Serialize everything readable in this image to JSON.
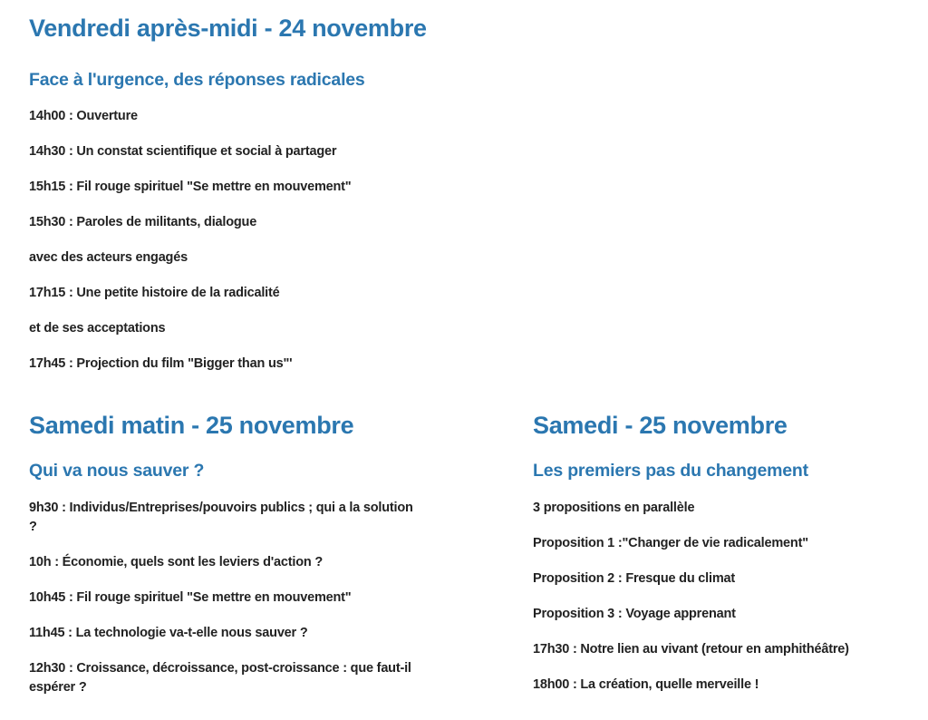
{
  "colors": {
    "heading": "#2b77b0",
    "text": "#222222"
  },
  "sections": [
    {
      "title": "Vendredi après-midi - 24 novembre",
      "subtitle": "Face à l'urgence, des réponses radicales",
      "items": [
        "14h00 : Ouverture",
        "14h30 : Un constat scientifique et social à partager",
        "15h15 : Fil rouge spirituel \"Se mettre en mouvement\"",
        "15h30 : Paroles de militants, dialogue",
        "avec des acteurs engagés",
        "17h15 : Une petite histoire de la radicalité",
        "et de ses acceptations",
        "17h45 : Projection du film \"Bigger than us\"'"
      ]
    },
    {
      "title": "Samedi matin - 25 novembre",
      "subtitle": "Qui va nous sauver ?",
      "items": [
        "9h30 : Individus/Entreprises/pouvoirs publics ; qui a la solution ?",
        "10h : Économie, quels sont les leviers d'action ?",
        "10h45 : Fil rouge spirituel \"Se mettre en mouvement\"",
        "11h45 : La technologie va-t-elle nous sauver ?",
        "12h30 : Croissance, décroissance, post-croissance : que faut-il espérer ?"
      ]
    },
    {
      "title": "Samedi - 25 novembre",
      "subtitle": "Les premiers pas du changement",
      "items": [
        "3 propositions en parallèle",
        "Proposition 1 :\"Changer de vie radicalement\"",
        "Proposition 2 : Fresque du climat",
        "Proposition 3 : Voyage apprenant",
        "17h30 : Notre lien au vivant (retour en amphithéâtre)",
        "18h00 : La création, quelle merveille !"
      ]
    }
  ]
}
